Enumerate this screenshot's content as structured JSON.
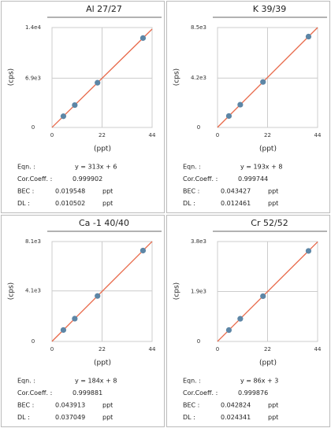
{
  "chart_data": [
    {
      "type": "scatter",
      "title": "Al 27/27",
      "x_label": "(ppt)",
      "y_label": "(cps)",
      "x": [
        5,
        10,
        20,
        40
      ],
      "values": [
        1571,
        3136,
        6266,
        12526
      ],
      "xlim": [
        0,
        44
      ],
      "xticks": [
        0,
        22,
        44
      ],
      "ylim": [
        0,
        14000
      ],
      "yticks": [
        0,
        {
          "value": 6900,
          "label": "6.9e3"
        },
        {
          "value": 14000,
          "label": "1.4e4"
        }
      ],
      "grid": true,
      "color": "#5d86a6",
      "fit_color": "#e8694a",
      "stats": [
        {
          "label": "Eqn. :",
          "value": "y = 313x + 6"
        },
        {
          "label": "Cor.Coeff. :",
          "value": "0.999902"
        },
        {
          "label": "BEC :",
          "value": "0.019548",
          "unit": "ppt"
        },
        {
          "label": "DL :",
          "value": "0.010502",
          "unit": "ppt"
        }
      ]
    },
    {
      "type": "scatter",
      "title": "K 39/39",
      "x_label": "(ppt)",
      "y_label": "(cps)",
      "x": [
        5,
        10,
        20,
        40
      ],
      "values": [
        973,
        1938,
        3868,
        7728
      ],
      "xlim": [
        0,
        44
      ],
      "xticks": [
        0,
        22,
        44
      ],
      "ylim": [
        0,
        8500
      ],
      "yticks": [
        0,
        {
          "value": 4200,
          "label": "4.2e3"
        },
        {
          "value": 8500,
          "label": "8.5e3"
        }
      ],
      "grid": true,
      "color": "#5d86a6",
      "fit_color": "#e8694a",
      "stats": [
        {
          "label": "Eqn. :",
          "value": "y = 193x + 8"
        },
        {
          "label": "Cor.Coeff. :",
          "value": "0.999744"
        },
        {
          "label": "BEC :",
          "value": "0.043427",
          "unit": "ppt"
        },
        {
          "label": "DL :",
          "value": "0.012461",
          "unit": "ppt"
        }
      ]
    },
    {
      "type": "scatter",
      "title": "Ca -1 40/40",
      "x_label": "(ppt)",
      "y_label": "(cps)",
      "x": [
        5,
        10,
        20,
        40
      ],
      "values": [
        928,
        1848,
        3688,
        7368
      ],
      "xlim": [
        0,
        44
      ],
      "xticks": [
        0,
        22,
        44
      ],
      "ylim": [
        0,
        8100
      ],
      "yticks": [
        0,
        {
          "value": 4100,
          "label": "4.1e3"
        },
        {
          "value": 8100,
          "label": "8.1e3"
        }
      ],
      "grid": true,
      "color": "#5d86a6",
      "fit_color": "#e8694a",
      "stats": [
        {
          "label": "Eqn. :",
          "value": "y = 184x + 8"
        },
        {
          "label": "Cor.Coeff. :",
          "value": "0.999881"
        },
        {
          "label": "BEC :",
          "value": "0.043913",
          "unit": "ppt"
        },
        {
          "label": "DL :",
          "value": "0.037049",
          "unit": "ppt"
        }
      ]
    },
    {
      "type": "scatter",
      "title": "Cr 52/52",
      "x_label": "(ppt)",
      "y_label": "(cps)",
      "x": [
        5,
        10,
        20,
        40
      ],
      "values": [
        433,
        863,
        1723,
        3443
      ],
      "xlim": [
        0,
        44
      ],
      "xticks": [
        0,
        22,
        44
      ],
      "ylim": [
        0,
        3800
      ],
      "yticks": [
        0,
        {
          "value": 1900,
          "label": "1.9e3"
        },
        {
          "value": 3800,
          "label": "3.8e3"
        }
      ],
      "grid": true,
      "color": "#5d86a6",
      "fit_color": "#e8694a",
      "stats": [
        {
          "label": "Eqn. :",
          "value": "y = 86x + 3"
        },
        {
          "label": "Cor.Coeff. :",
          "value": "0.999876"
        },
        {
          "label": "BEC :",
          "value": "0.042824",
          "unit": "ppt"
        },
        {
          "label": "DL :",
          "value": "0.024341",
          "unit": "ppt"
        }
      ]
    }
  ]
}
